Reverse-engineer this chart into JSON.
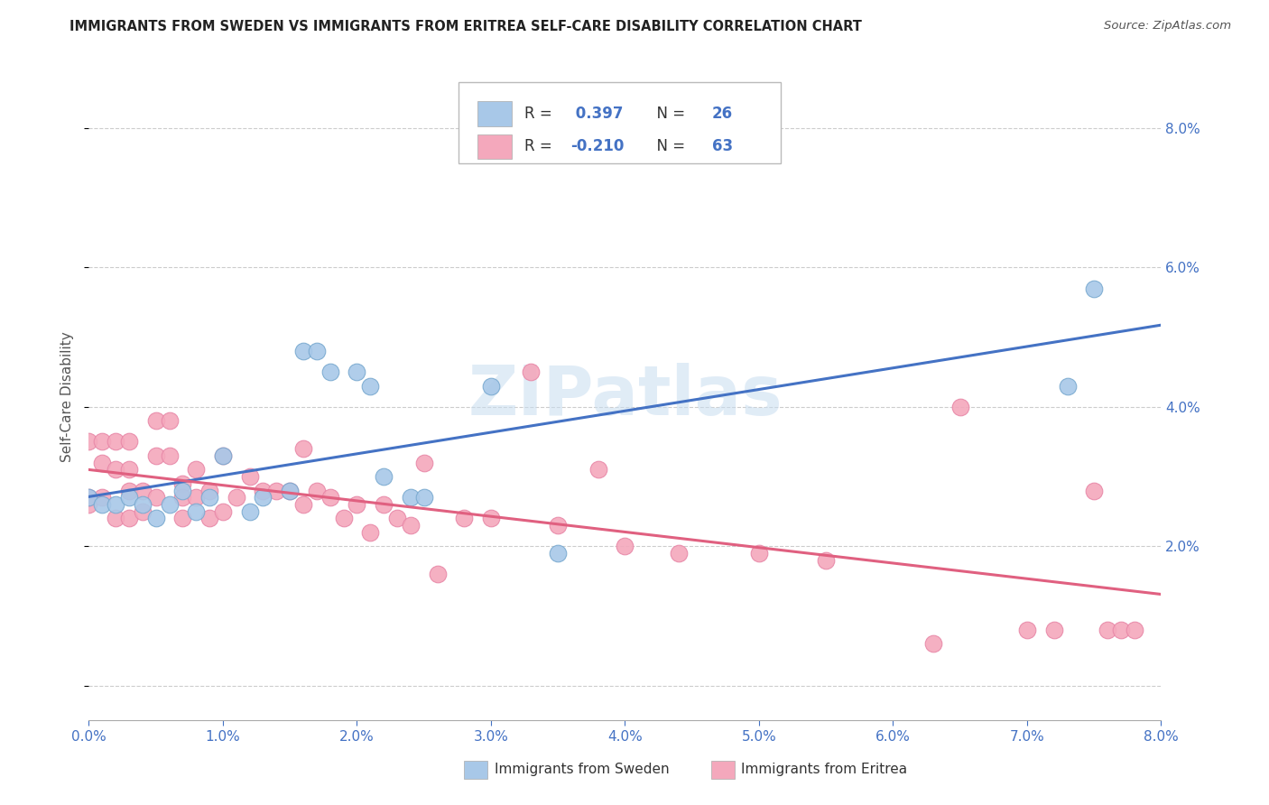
{
  "title": "IMMIGRANTS FROM SWEDEN VS IMMIGRANTS FROM ERITREA SELF-CARE DISABILITY CORRELATION CHART",
  "source": "Source: ZipAtlas.com",
  "ylabel": "Self-Care Disability",
  "xlim": [
    0.0,
    0.08
  ],
  "ylim": [
    -0.005,
    0.088
  ],
  "xticks": [
    0.0,
    0.01,
    0.02,
    0.03,
    0.04,
    0.05,
    0.06,
    0.07,
    0.08
  ],
  "xticklabels": [
    "0.0%",
    "1.0%",
    "2.0%",
    "3.0%",
    "4.0%",
    "5.0%",
    "6.0%",
    "7.0%",
    "8.0%"
  ],
  "yticks": [
    0.02,
    0.04,
    0.06,
    0.08
  ],
  "yticklabels": [
    "2.0%",
    "4.0%",
    "6.0%",
    "8.0%"
  ],
  "sweden_color": "#a8c8e8",
  "eritrea_color": "#f4a8bc",
  "sweden_edge_color": "#7aaad0",
  "eritrea_edge_color": "#e888a8",
  "sweden_line_color": "#4472c4",
  "eritrea_line_color": "#e06080",
  "R_sweden": "0.397",
  "N_sweden": "26",
  "R_eritrea": "-0.210",
  "N_eritrea": "63",
  "watermark": "ZIPatlas",
  "background_color": "#ffffff",
  "grid_color": "#cccccc",
  "legend_label_color": "#4472c4",
  "sweden_x": [
    0.0,
    0.001,
    0.002,
    0.003,
    0.004,
    0.005,
    0.006,
    0.007,
    0.008,
    0.009,
    0.01,
    0.012,
    0.013,
    0.015,
    0.016,
    0.017,
    0.018,
    0.02,
    0.021,
    0.022,
    0.024,
    0.025,
    0.03,
    0.035,
    0.073,
    0.075
  ],
  "sweden_y": [
    0.027,
    0.026,
    0.026,
    0.027,
    0.026,
    0.024,
    0.026,
    0.028,
    0.025,
    0.027,
    0.033,
    0.025,
    0.027,
    0.028,
    0.048,
    0.048,
    0.045,
    0.045,
    0.043,
    0.03,
    0.027,
    0.027,
    0.043,
    0.019,
    0.043,
    0.057
  ],
  "eritrea_x": [
    0.0,
    0.0,
    0.0,
    0.001,
    0.001,
    0.001,
    0.002,
    0.002,
    0.002,
    0.003,
    0.003,
    0.003,
    0.003,
    0.004,
    0.004,
    0.005,
    0.005,
    0.005,
    0.006,
    0.006,
    0.007,
    0.007,
    0.007,
    0.008,
    0.008,
    0.009,
    0.009,
    0.01,
    0.01,
    0.011,
    0.012,
    0.013,
    0.014,
    0.015,
    0.016,
    0.016,
    0.017,
    0.018,
    0.019,
    0.02,
    0.021,
    0.022,
    0.023,
    0.024,
    0.025,
    0.026,
    0.028,
    0.03,
    0.033,
    0.035,
    0.038,
    0.04,
    0.044,
    0.05,
    0.055,
    0.063,
    0.065,
    0.07,
    0.072,
    0.075,
    0.076,
    0.077,
    0.078
  ],
  "eritrea_y": [
    0.026,
    0.027,
    0.035,
    0.035,
    0.032,
    0.027,
    0.024,
    0.031,
    0.035,
    0.024,
    0.028,
    0.031,
    0.035,
    0.025,
    0.028,
    0.027,
    0.033,
    0.038,
    0.033,
    0.038,
    0.024,
    0.029,
    0.027,
    0.031,
    0.027,
    0.024,
    0.028,
    0.033,
    0.025,
    0.027,
    0.03,
    0.028,
    0.028,
    0.028,
    0.026,
    0.034,
    0.028,
    0.027,
    0.024,
    0.026,
    0.022,
    0.026,
    0.024,
    0.023,
    0.032,
    0.016,
    0.024,
    0.024,
    0.045,
    0.023,
    0.031,
    0.02,
    0.019,
    0.019,
    0.018,
    0.006,
    0.04,
    0.008,
    0.008,
    0.028,
    0.008,
    0.008,
    0.008
  ]
}
